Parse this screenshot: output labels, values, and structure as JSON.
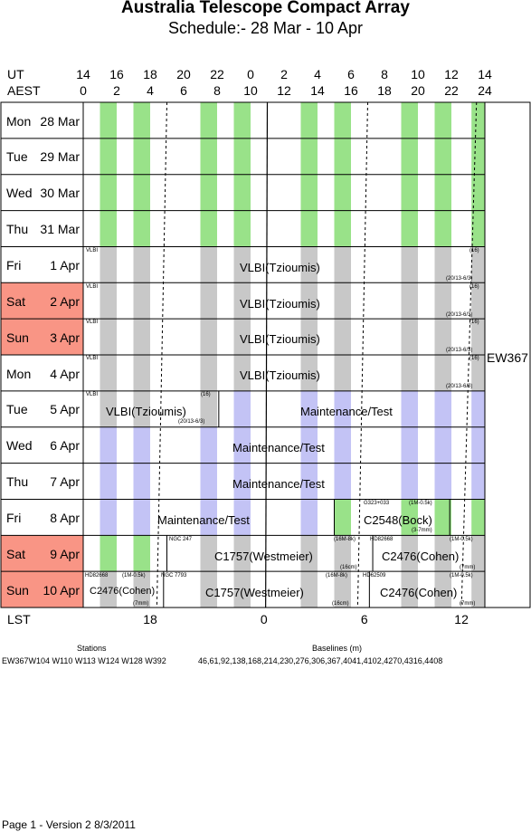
{
  "header": {
    "title": "Australia Telescope Compact Array",
    "subtitle": "Schedule:- 28 Mar - 10 Apr"
  },
  "axes": {
    "ut_label": "UT",
    "aest_label": "AEST",
    "lst_label": "LST",
    "ut_ticks": [
      "14",
      "16",
      "18",
      "20",
      "22",
      "0",
      "2",
      "4",
      "6",
      "8",
      "10",
      "12",
      "14"
    ],
    "aest_ticks": [
      "0",
      "2",
      "4",
      "6",
      "8",
      "10",
      "12",
      "14",
      "16",
      "18",
      "20",
      "22",
      "24"
    ],
    "lst_ticks": [
      "18",
      "0",
      "6",
      "12"
    ]
  },
  "rows": [
    {
      "day": "Mon",
      "date": "28 Mar",
      "weekend": false
    },
    {
      "day": "Tue",
      "date": "29 Mar",
      "weekend": false
    },
    {
      "day": "Wed",
      "date": "30 Mar",
      "weekend": false
    },
    {
      "day": "Thu",
      "date": "31 Mar",
      "weekend": false
    },
    {
      "day": "Fri",
      "date": "1 Apr",
      "weekend": false
    },
    {
      "day": "Sat",
      "date": "2 Apr",
      "weekend": true
    },
    {
      "day": "Sun",
      "date": "3 Apr",
      "weekend": true
    },
    {
      "day": "Mon",
      "date": "4 Apr",
      "weekend": false
    },
    {
      "day": "Tue",
      "date": "5 Apr",
      "weekend": false
    },
    {
      "day": "Wed",
      "date": "6 Apr",
      "weekend": false
    },
    {
      "day": "Thu",
      "date": "7 Apr",
      "weekend": false
    },
    {
      "day": "Fri",
      "date": "8 Apr",
      "weekend": false
    },
    {
      "day": "Sat",
      "date": "9 Apr",
      "weekend": true
    },
    {
      "day": "Sun",
      "date": "10 Apr",
      "weekend": true
    }
  ],
  "programs": {
    "vlbi_main": "VLBI(Tzioumis)",
    "vlbi_tag": "VLBI",
    "vlbi_note_top": "(16)",
    "vlbi_note_bottom": "(20/13-6/3)",
    "maintenance": "Maintenance/Test",
    "bock_main": "C2548(Bock)",
    "bock_tag": "G323+033",
    "bock_note_top": "(1M-0.5k)",
    "bock_note_bottom": "(3-7mm)",
    "westmeier_main": "C1757(Westmeier)",
    "westmeier_tag_sat": "NGC 247",
    "westmeier_tag_sun": "NGC 7793",
    "westmeier_note_top": "(16M-8k)",
    "westmeier_note_bottom": "(16cm)",
    "cohen_main": "C2476(Cohen)",
    "cohen_tag_sat": "HD82668",
    "cohen_tag_sun": "HD62509",
    "cohen_note_top": "(1M-0.5k)",
    "cohen_note_bottom": "(7mm)",
    "cohen_sun_left_tag": "HD82668",
    "cohen_sun_left_note": "(1M-0.5k)"
  },
  "config_label": "EW367",
  "stations": {
    "heading": "Stations",
    "value": "EW367W104 W110 W113 W124 W128 W392"
  },
  "baselines": {
    "heading": "Baselines (m)",
    "value": "46,61,92,138,168,214,230,276,306,367,4041,4102,4270,4316,4408"
  },
  "footer": {
    "page": "Page 1 - Version 2  8/3/2011"
  },
  "colors": {
    "green": "#99e289",
    "grey": "#c8c8c8",
    "lavender": "#c3c3f5",
    "weekend": "#f99585",
    "grid": "#000000"
  }
}
